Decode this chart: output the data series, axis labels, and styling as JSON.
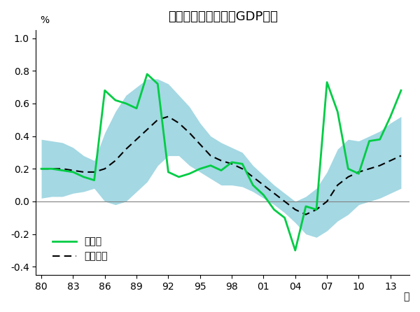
{
  "title": "不動産業実物投資のGDP比率",
  "ylabel": "%",
  "xlabel_end": "年",
  "xtick_labels": [
    "80",
    "83",
    "86",
    "89",
    "92",
    "95",
    "98",
    "01",
    "04",
    "07",
    "10",
    "13"
  ],
  "xtick_years": [
    1980,
    1983,
    1986,
    1989,
    1992,
    1995,
    1998,
    2001,
    2004,
    2007,
    2010,
    2013
  ],
  "ylim": [
    -0.45,
    1.05
  ],
  "yticks": [
    -0.4,
    -0.2,
    0.0,
    0.2,
    0.4,
    0.6,
    0.8,
    1.0
  ],
  "legend_items": [
    "原系列",
    "トレンド"
  ],
  "line_color": "#00cc44",
  "band_color": "#7ec8d8",
  "trend_color": "#000000",
  "years": [
    1980,
    1981,
    1982,
    1983,
    1984,
    1985,
    1986,
    1987,
    1988,
    1989,
    1990,
    1991,
    1992,
    1993,
    1994,
    1995,
    1996,
    1997,
    1998,
    1999,
    2000,
    2001,
    2002,
    2003,
    2004,
    2005,
    2006,
    2007,
    2008,
    2009,
    2010,
    2011,
    2012,
    2013,
    2014
  ],
  "series": [
    0.2,
    0.2,
    0.19,
    0.18,
    0.15,
    0.13,
    0.68,
    0.62,
    0.6,
    0.57,
    0.78,
    0.72,
    0.18,
    0.15,
    0.17,
    0.2,
    0.22,
    0.19,
    0.24,
    0.23,
    0.1,
    0.04,
    -0.05,
    -0.1,
    -0.3,
    -0.03,
    -0.05,
    0.73,
    0.55,
    0.2,
    0.17,
    0.37,
    0.38,
    0.52,
    0.68
  ],
  "trend": [
    0.2,
    0.2,
    0.2,
    0.19,
    0.18,
    0.18,
    0.2,
    0.25,
    0.32,
    0.38,
    0.44,
    0.5,
    0.52,
    0.48,
    0.42,
    0.35,
    0.28,
    0.25,
    0.23,
    0.2,
    0.15,
    0.1,
    0.05,
    0.0,
    -0.05,
    -0.08,
    -0.05,
    0.0,
    0.1,
    0.15,
    0.18,
    0.2,
    0.22,
    0.25,
    0.28
  ],
  "band_upper": [
    0.38,
    0.37,
    0.36,
    0.33,
    0.28,
    0.25,
    0.42,
    0.55,
    0.65,
    0.7,
    0.75,
    0.75,
    0.72,
    0.65,
    0.58,
    0.48,
    0.4,
    0.36,
    0.33,
    0.3,
    0.22,
    0.16,
    0.1,
    0.05,
    0.0,
    0.03,
    0.08,
    0.18,
    0.32,
    0.38,
    0.37,
    0.4,
    0.43,
    0.48,
    0.52
  ],
  "band_lower": [
    0.02,
    0.03,
    0.03,
    0.05,
    0.06,
    0.08,
    0.0,
    -0.02,
    0.0,
    0.06,
    0.12,
    0.22,
    0.28,
    0.28,
    0.22,
    0.18,
    0.14,
    0.1,
    0.1,
    0.09,
    0.06,
    0.02,
    -0.02,
    -0.07,
    -0.13,
    -0.2,
    -0.22,
    -0.18,
    -0.12,
    -0.08,
    -0.02,
    0.0,
    0.02,
    0.05,
    0.08
  ]
}
